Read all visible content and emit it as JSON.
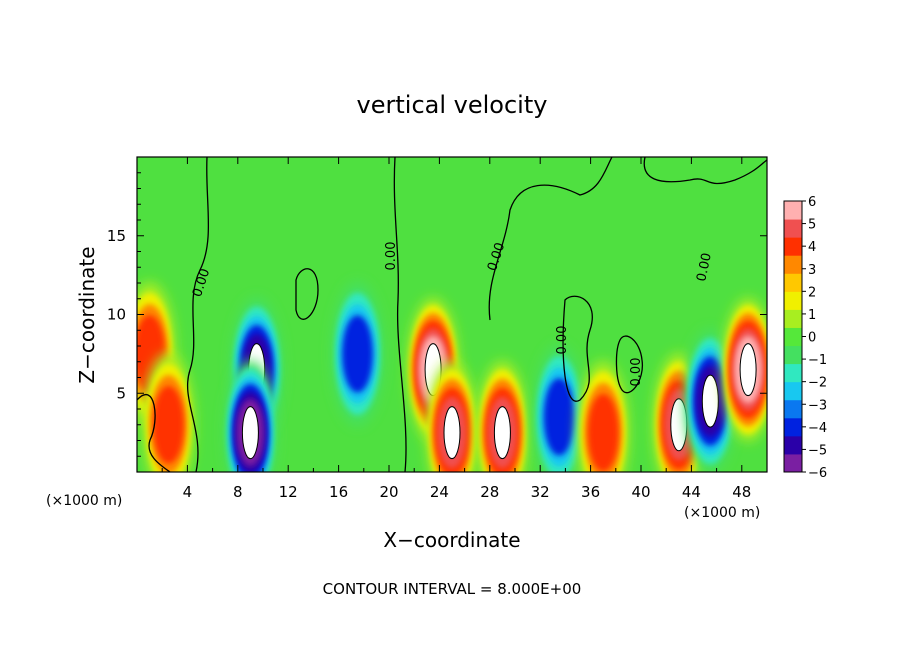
{
  "chart_data": {
    "type": "heatmap",
    "title": "vertical velocity",
    "xlabel": "X−coordinate",
    "ylabel": "Z−coordinate",
    "x_unit_left": "(×1000 m)",
    "x_unit_right": "(×1000 m)",
    "xlim": [
      0,
      50
    ],
    "ylim": [
      0,
      20
    ],
    "x_ticks": [
      4,
      8,
      12,
      16,
      20,
      24,
      28,
      32,
      36,
      40,
      44,
      48
    ],
    "y_ticks": [
      5,
      10,
      15
    ],
    "colorbar": {
      "ticks": [
        "6",
        "5",
        "4",
        "3",
        "2",
        "1",
        "0",
        "−1",
        "−2",
        "−3",
        "−4",
        "−5",
        "−6"
      ],
      "min": -6,
      "max": 6,
      "colors": [
        "#7a1fa2",
        "#2a00a8",
        "#0022e0",
        "#0a78f0",
        "#18c8f0",
        "#30e8c0",
        "#44e060",
        "#55e83a",
        "#a8ee20",
        "#f0f000",
        "#ffc800",
        "#ff8800",
        "#ff3000",
        "#f05050",
        "#ffb0b0"
      ]
    },
    "contour_labels": [
      "0.00",
      "0.00",
      "0.00",
      "0.00",
      "0.00",
      "0.00"
    ],
    "footer": "CONTOUR INTERVAL = 8.000E+00",
    "features": [
      {
        "x": 9.5,
        "z": 6.5,
        "value": -5
      },
      {
        "x": 9.0,
        "z": 2.5,
        "value": -6
      },
      {
        "x": 17.5,
        "z": 7.5,
        "value": -4
      },
      {
        "x": 23.5,
        "z": 6.5,
        "value": 6
      },
      {
        "x": 25.0,
        "z": 2.5,
        "value": 5
      },
      {
        "x": 29.0,
        "z": 2.5,
        "value": 5
      },
      {
        "x": 33.5,
        "z": 3.5,
        "value": -4
      },
      {
        "x": 37.0,
        "z": 2.5,
        "value": 4
      },
      {
        "x": 43.0,
        "z": 3.0,
        "value": 5
      },
      {
        "x": 45.5,
        "z": 4.5,
        "value": -5
      },
      {
        "x": 48.5,
        "z": 6.5,
        "value": 6
      },
      {
        "x": 1.0,
        "z": 7.5,
        "value": 4
      },
      {
        "x": 2.5,
        "z": 3.0,
        "value": 4
      }
    ]
  }
}
